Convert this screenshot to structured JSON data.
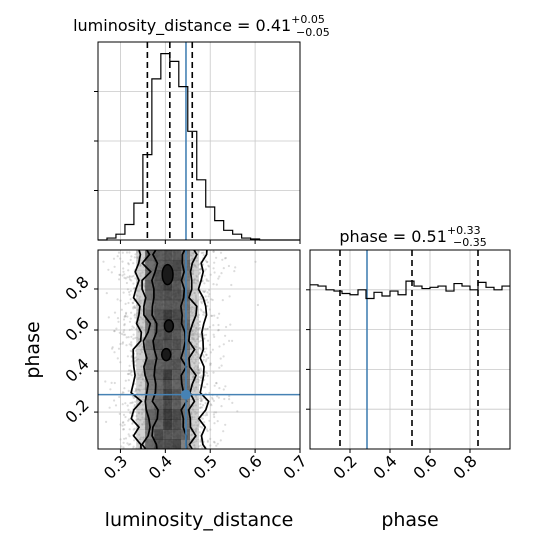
{
  "parameters": [
    "luminosity_distance",
    "phase"
  ],
  "chart_data": [
    {
      "type": "histogram",
      "panel": "luminosity_distance marginal",
      "title": {
        "param": "luminosity_distance",
        "value": "0.41",
        "plus": "+0.05",
        "minus": "−0.05"
      },
      "x_range": [
        0.25,
        0.7
      ],
      "bins": [
        {
          "x0": 0.25,
          "x1": 0.27,
          "count": 0
        },
        {
          "x0": 0.27,
          "x1": 0.29,
          "count": 1
        },
        {
          "x0": 0.29,
          "x1": 0.31,
          "count": 3
        },
        {
          "x0": 0.31,
          "x1": 0.33,
          "count": 8
        },
        {
          "x0": 0.33,
          "x1": 0.35,
          "count": 19
        },
        {
          "x0": 0.35,
          "x1": 0.37,
          "count": 44
        },
        {
          "x0": 0.37,
          "x1": 0.39,
          "count": 83
        },
        {
          "x0": 0.39,
          "x1": 0.41,
          "count": 96
        },
        {
          "x0": 0.41,
          "x1": 0.43,
          "count": 92
        },
        {
          "x0": 0.43,
          "x1": 0.45,
          "count": 79
        },
        {
          "x0": 0.45,
          "x1": 0.47,
          "count": 56
        },
        {
          "x0": 0.47,
          "x1": 0.49,
          "count": 31
        },
        {
          "x0": 0.49,
          "x1": 0.51,
          "count": 17
        },
        {
          "x0": 0.51,
          "x1": 0.53,
          "count": 10
        },
        {
          "x0": 0.53,
          "x1": 0.55,
          "count": 5
        },
        {
          "x0": 0.55,
          "x1": 0.57,
          "count": 3
        },
        {
          "x0": 0.57,
          "x1": 0.59,
          "count": 1
        },
        {
          "x0": 0.59,
          "x1": 0.61,
          "count": 0.5
        },
        {
          "x0": 0.61,
          "x1": 0.7,
          "count": 0
        }
      ],
      "y_max": 102,
      "quantiles": [
        0.36,
        0.41,
        0.46
      ],
      "truth": 0.446,
      "grid": true
    },
    {
      "type": "scatter",
      "panel": "luminosity_distance vs phase",
      "x_range": [
        0.25,
        0.7
      ],
      "y_range": [
        0.02,
        0.99
      ],
      "x_ticks": [
        "0.3",
        "0.4",
        "0.5",
        "0.6",
        "0.7"
      ],
      "y_ticks": [
        "0.2",
        "0.4",
        "0.6",
        "0.8"
      ],
      "sample_distribution": {
        "x_mean": 0.41,
        "x_std": 0.05,
        "y_min": 0.02,
        "y_max": 0.99,
        "count": 3000
      },
      "truth": {
        "x": 0.446,
        "y": 0.285
      },
      "contour_levels": 3,
      "grid": true
    },
    {
      "type": "histogram",
      "panel": "phase marginal",
      "title": {
        "param": "phase",
        "value": "0.51",
        "plus": "+0.33",
        "minus": "−0.35"
      },
      "x_range": [
        0.0,
        1.0
      ],
      "x_ticks": [
        "0.2",
        "0.4",
        "0.6",
        "0.8"
      ],
      "bins": [
        {
          "x0": 0.0,
          "x1": 0.04,
          "count": 132
        },
        {
          "x0": 0.04,
          "x1": 0.08,
          "count": 131
        },
        {
          "x0": 0.08,
          "x1": 0.12,
          "count": 128
        },
        {
          "x0": 0.12,
          "x1": 0.16,
          "count": 127
        },
        {
          "x0": 0.16,
          "x1": 0.2,
          "count": 125
        },
        {
          "x0": 0.2,
          "x1": 0.24,
          "count": 124
        },
        {
          "x0": 0.24,
          "x1": 0.28,
          "count": 128
        },
        {
          "x0": 0.28,
          "x1": 0.32,
          "count": 121
        },
        {
          "x0": 0.32,
          "x1": 0.36,
          "count": 126
        },
        {
          "x0": 0.36,
          "x1": 0.4,
          "count": 123
        },
        {
          "x0": 0.4,
          "x1": 0.44,
          "count": 127
        },
        {
          "x0": 0.44,
          "x1": 0.48,
          "count": 124
        },
        {
          "x0": 0.48,
          "x1": 0.52,
          "count": 135
        },
        {
          "x0": 0.52,
          "x1": 0.56,
          "count": 131
        },
        {
          "x0": 0.56,
          "x1": 0.6,
          "count": 129
        },
        {
          "x0": 0.6,
          "x1": 0.64,
          "count": 130
        },
        {
          "x0": 0.64,
          "x1": 0.68,
          "count": 131
        },
        {
          "x0": 0.68,
          "x1": 0.72,
          "count": 127
        },
        {
          "x0": 0.72,
          "x1": 0.76,
          "count": 133
        },
        {
          "x0": 0.76,
          "x1": 0.8,
          "count": 131
        },
        {
          "x0": 0.8,
          "x1": 0.84,
          "count": 128
        },
        {
          "x0": 0.84,
          "x1": 0.88,
          "count": 134
        },
        {
          "x0": 0.88,
          "x1": 0.92,
          "count": 130
        },
        {
          "x0": 0.92,
          "x1": 0.96,
          "count": 128
        },
        {
          "x0": 0.96,
          "x1": 1.0,
          "count": 131
        }
      ],
      "y_max": 160,
      "quantiles": [
        0.15,
        0.51,
        0.84
      ],
      "truth": 0.285,
      "grid": true
    }
  ],
  "colors": {
    "truth": "#4682b4",
    "line": "#000000",
    "grid": "#c8c8c8",
    "scatter": "#9a9a9a"
  }
}
